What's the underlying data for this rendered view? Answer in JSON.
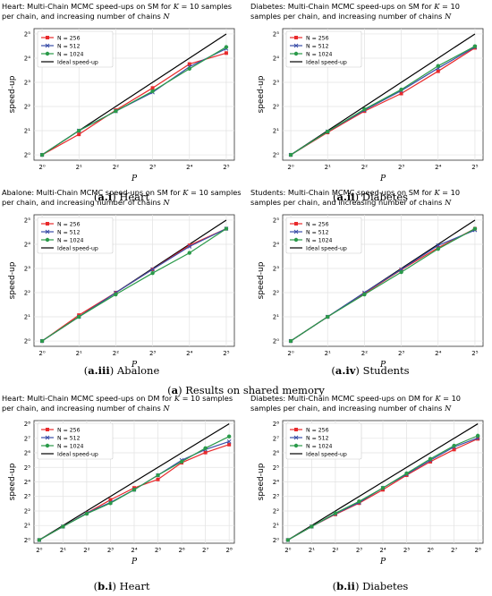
{
  "group_captions": [
    {
      "letter": "a",
      "text": "Results on shared memory"
    }
  ],
  "chart_data": [
    {
      "type": "line",
      "title": "Heart: Multi-Chain MCMC speed-ups on SM for K = 10 samples per chain, and increasing number of chains N",
      "caption_label": "a.i",
      "caption_text": "Heart",
      "xlabel": "P",
      "ylabel": "speed-up",
      "x": [
        1,
        2,
        4,
        8,
        16,
        32
      ],
      "xticks": [
        "2⁰",
        "2¹",
        "2²",
        "2³",
        "2⁴",
        "2⁵"
      ],
      "yticks": [
        "2⁰",
        "2¹",
        "2²",
        "2³",
        "2⁴",
        "2⁵"
      ],
      "xlim_log2": [
        0,
        5
      ],
      "ylim_log2": [
        0,
        5
      ],
      "grid": true,
      "legend": "top-left",
      "series": [
        {
          "name": "N = 256",
          "color": "#e8292b",
          "marker": "square",
          "values": [
            1,
            1.8,
            3.6,
            6.8,
            13.5,
            18.5
          ]
        },
        {
          "name": "N = 512",
          "color": "#3a4ea8",
          "marker": "x",
          "values": [
            1,
            2.0,
            3.5,
            6.0,
            12.5,
            21
          ]
        },
        {
          "name": "N = 1024",
          "color": "#2a9a4a",
          "marker": "circle",
          "values": [
            1,
            2.0,
            3.5,
            6.2,
            11.8,
            22
          ]
        },
        {
          "name": "Ideal speed-up",
          "color": "#000000",
          "marker": "none",
          "values": [
            1,
            2,
            4,
            8,
            16,
            32
          ]
        }
      ]
    },
    {
      "type": "line",
      "title": "Diabetes: Multi-Chain MCMC speed-ups on SM for K = 10 samples per chain, and increasing number of chains N",
      "caption_label": "a.ii",
      "caption_text": "Diabetes",
      "xlabel": "P",
      "ylabel": "speed-up",
      "x": [
        1,
        2,
        4,
        8,
        16,
        32
      ],
      "xticks": [
        "2⁰",
        "2¹",
        "2²",
        "2³",
        "2⁴",
        "2⁵"
      ],
      "yticks": [
        "2⁰",
        "2¹",
        "2²",
        "2³",
        "2⁴",
        "2⁵"
      ],
      "xlim_log2": [
        0,
        5
      ],
      "ylim_log2": [
        0,
        5
      ],
      "grid": true,
      "legend": "top-left",
      "series": [
        {
          "name": "N = 256",
          "color": "#e8292b",
          "marker": "square",
          "values": [
            1,
            1.9,
            3.5,
            5.8,
            11,
            21.5
          ]
        },
        {
          "name": "N = 512",
          "color": "#3a4ea8",
          "marker": "x",
          "values": [
            1,
            1.95,
            3.6,
            6.3,
            12,
            22
          ]
        },
        {
          "name": "N = 1024",
          "color": "#2a9a4a",
          "marker": "circle",
          "values": [
            1,
            1.95,
            3.7,
            6.5,
            12.8,
            22.5
          ]
        },
        {
          "name": "Ideal speed-up",
          "color": "#000000",
          "marker": "none",
          "values": [
            1,
            2,
            4,
            8,
            16,
            32
          ]
        }
      ]
    },
    {
      "type": "line",
      "title": "Abalone: Multi-Chain MCMC speed-ups on SM for K = 10 samples per chain, and increasing number of chains N",
      "caption_label": "a.iii",
      "caption_text": "Abalone",
      "xlabel": "P",
      "ylabel": "speed-up",
      "x": [
        1,
        2,
        4,
        8,
        16,
        32
      ],
      "xticks": [
        "2⁰",
        "2¹",
        "2²",
        "2³",
        "2⁴",
        "2⁵"
      ],
      "yticks": [
        "2⁰",
        "2¹",
        "2²",
        "2³",
        "2⁴",
        "2⁵"
      ],
      "xlim_log2": [
        0,
        5
      ],
      "ylim_log2": [
        0,
        5
      ],
      "grid": true,
      "legend": "top-left",
      "series": [
        {
          "name": "N = 256",
          "color": "#e8292b",
          "marker": "square",
          "values": [
            1,
            2.1,
            4.0,
            7.8,
            15.5,
            25
          ]
        },
        {
          "name": "N = 512",
          "color": "#3a4ea8",
          "marker": "x",
          "values": [
            1,
            2.0,
            4.0,
            7.8,
            15.0,
            25
          ]
        },
        {
          "name": "N = 1024",
          "color": "#2a9a4a",
          "marker": "circle",
          "values": [
            1,
            2.0,
            3.8,
            7.0,
            12.5,
            25
          ]
        },
        {
          "name": "Ideal speed-up",
          "color": "#000000",
          "marker": "none",
          "values": [
            1,
            2,
            4,
            8,
            16,
            32
          ]
        }
      ]
    },
    {
      "type": "line",
      "title": "Students: Multi-Chain MCMC speed-ups on SM for K = 10 samples per chain, and increasing number of chains N",
      "caption_label": "a.iv",
      "caption_text": "Students",
      "xlabel": "P",
      "ylabel": "speed-up",
      "x": [
        1,
        2,
        4,
        8,
        16,
        32
      ],
      "xticks": [
        "2⁰",
        "2¹",
        "2²",
        "2³",
        "2⁴",
        "2⁵"
      ],
      "yticks": [
        "2⁰",
        "2¹",
        "2²",
        "2³",
        "2⁴",
        "2⁵"
      ],
      "xlim_log2": [
        0,
        5
      ],
      "ylim_log2": [
        0,
        5
      ],
      "grid": true,
      "legend": "top-left",
      "series": [
        {
          "name": "N = 256",
          "color": "#e8292b",
          "marker": "square",
          "values": [
            1,
            2.0,
            3.9,
            7.7,
            14.5,
            25
          ]
        },
        {
          "name": "N = 512",
          "color": "#3a4ea8",
          "marker": "x",
          "values": [
            1,
            2.0,
            4.0,
            7.8,
            15.5,
            24
          ]
        },
        {
          "name": "N = 1024",
          "color": "#2a9a4a",
          "marker": "circle",
          "values": [
            1,
            2.0,
            3.8,
            7.2,
            14.0,
            25
          ]
        },
        {
          "name": "Ideal speed-up",
          "color": "#000000",
          "marker": "none",
          "values": [
            1,
            2,
            4,
            8,
            16,
            32
          ]
        }
      ]
    },
    {
      "type": "line",
      "title": "Heart: Multi-Chain MCMC speed-ups on DM for K = 10 samples per chain, and increasing number of chains N",
      "caption_label": "b.i",
      "caption_text": "Heart",
      "xlabel": "P",
      "ylabel": "speed-up",
      "x": [
        1,
        2,
        4,
        8,
        16,
        32,
        64,
        128,
        256
      ],
      "xticks": [
        "2⁰",
        "2¹",
        "2²",
        "2³",
        "2⁴",
        "2⁵",
        "2⁶",
        "2⁷",
        "2⁸"
      ],
      "yticks": [
        "2⁰",
        "2¹",
        "2²",
        "2³",
        "2⁴",
        "2⁵",
        "2⁶",
        "2⁷",
        "2⁸"
      ],
      "xlim_log2": [
        0,
        8
      ],
      "ylim_log2": [
        0,
        8
      ],
      "grid": true,
      "legend": "top-left",
      "series": [
        {
          "name": "N = 256",
          "color": "#e8292b",
          "marker": "square",
          "values": [
            1,
            1.9,
            3.6,
            6.8,
            12,
            18,
            40,
            65,
            95
          ]
        },
        {
          "name": "N = 512",
          "color": "#3a4ea8",
          "marker": "x",
          "values": [
            1,
            1.9,
            3.6,
            6.0,
            11,
            22,
            45,
            75,
            110
          ]
        },
        {
          "name": "N = 1024",
          "color": "#2a9a4a",
          "marker": "circle",
          "values": [
            1,
            1.9,
            3.5,
            5.8,
            11,
            22,
            42,
            80,
            140
          ]
        },
        {
          "name": "Ideal speed-up",
          "color": "#000000",
          "marker": "none",
          "values": [
            1,
            2,
            4,
            8,
            16,
            32,
            64,
            128,
            256
          ]
        }
      ]
    },
    {
      "type": "line",
      "title": "Diabetes: Multi-Chain MCMC speed-ups on DM for K = 10 samples per chain, and increasing number of chains N",
      "caption_label": "b.ii",
      "caption_text": "Diabetes",
      "xlabel": "P",
      "ylabel": "speed-up",
      "x": [
        1,
        2,
        4,
        8,
        16,
        32,
        64,
        128,
        256
      ],
      "xticks": [
        "2⁰",
        "2¹",
        "2²",
        "2³",
        "2⁴",
        "2⁵",
        "2⁶",
        "2⁷",
        "2⁸"
      ],
      "yticks": [
        "2⁰",
        "2¹",
        "2²",
        "2³",
        "2⁴",
        "2⁵",
        "2⁶",
        "2⁷",
        "2⁸"
      ],
      "xlim_log2": [
        0,
        8
      ],
      "ylim_log2": [
        0,
        8
      ],
      "grid": true,
      "legend": "top-left",
      "series": [
        {
          "name": "N = 256",
          "color": "#e8292b",
          "marker": "square",
          "values": [
            1,
            1.9,
            3.4,
            5.8,
            11,
            22,
            42,
            75,
            125
          ]
        },
        {
          "name": "N = 512",
          "color": "#3a4ea8",
          "marker": "x",
          "values": [
            1,
            1.9,
            3.5,
            6.0,
            12,
            23,
            45,
            85,
            130
          ]
        },
        {
          "name": "N = 1024",
          "color": "#2a9a4a",
          "marker": "circle",
          "values": [
            1,
            1.9,
            3.6,
            6.3,
            12,
            24,
            48,
            90,
            145
          ]
        },
        {
          "name": "Ideal speed-up",
          "color": "#000000",
          "marker": "none",
          "values": [
            1,
            2,
            4,
            8,
            16,
            32,
            64,
            128,
            256
          ]
        }
      ]
    }
  ]
}
